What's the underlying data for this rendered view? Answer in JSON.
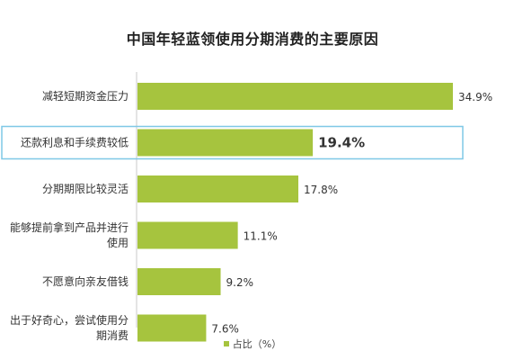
{
  "chart_data": {
    "type": "bar",
    "orientation": "horizontal",
    "title": "中国年轻蓝领使用分期消费的主要原因",
    "categories": [
      "减轻短期资金压力",
      "还款利息和手续费较低",
      "分期期限比较灵活",
      "能够提前拿到产品并进行使用",
      "不愿意向亲友借钱",
      "出于好奇心，尝试使用分期消费"
    ],
    "category_lines": [
      [
        "减轻短期资金压力"
      ],
      [
        "还款利息和手续费较低"
      ],
      [
        "分期期限比较灵活"
      ],
      [
        "能够提前拿到产品并进行",
        "使用"
      ],
      [
        "不愿意向亲友借钱"
      ],
      [
        "出于好奇心，尝试使用分",
        "期消费"
      ]
    ],
    "series": [
      {
        "name": "占比（%）",
        "values": [
          34.9,
          19.4,
          17.8,
          11.1,
          9.2,
          7.6
        ],
        "labels": [
          "34.9%",
          "19.4%",
          "17.8%",
          "11.1%",
          "9.2%",
          "7.6%"
        ]
      }
    ],
    "highlight_index": 1,
    "bar_color": "#a6c43e",
    "highlight_border_color": "#7fc8e6",
    "legend": {
      "label": "占比（%）",
      "position": "bottom"
    },
    "grid": false
  }
}
